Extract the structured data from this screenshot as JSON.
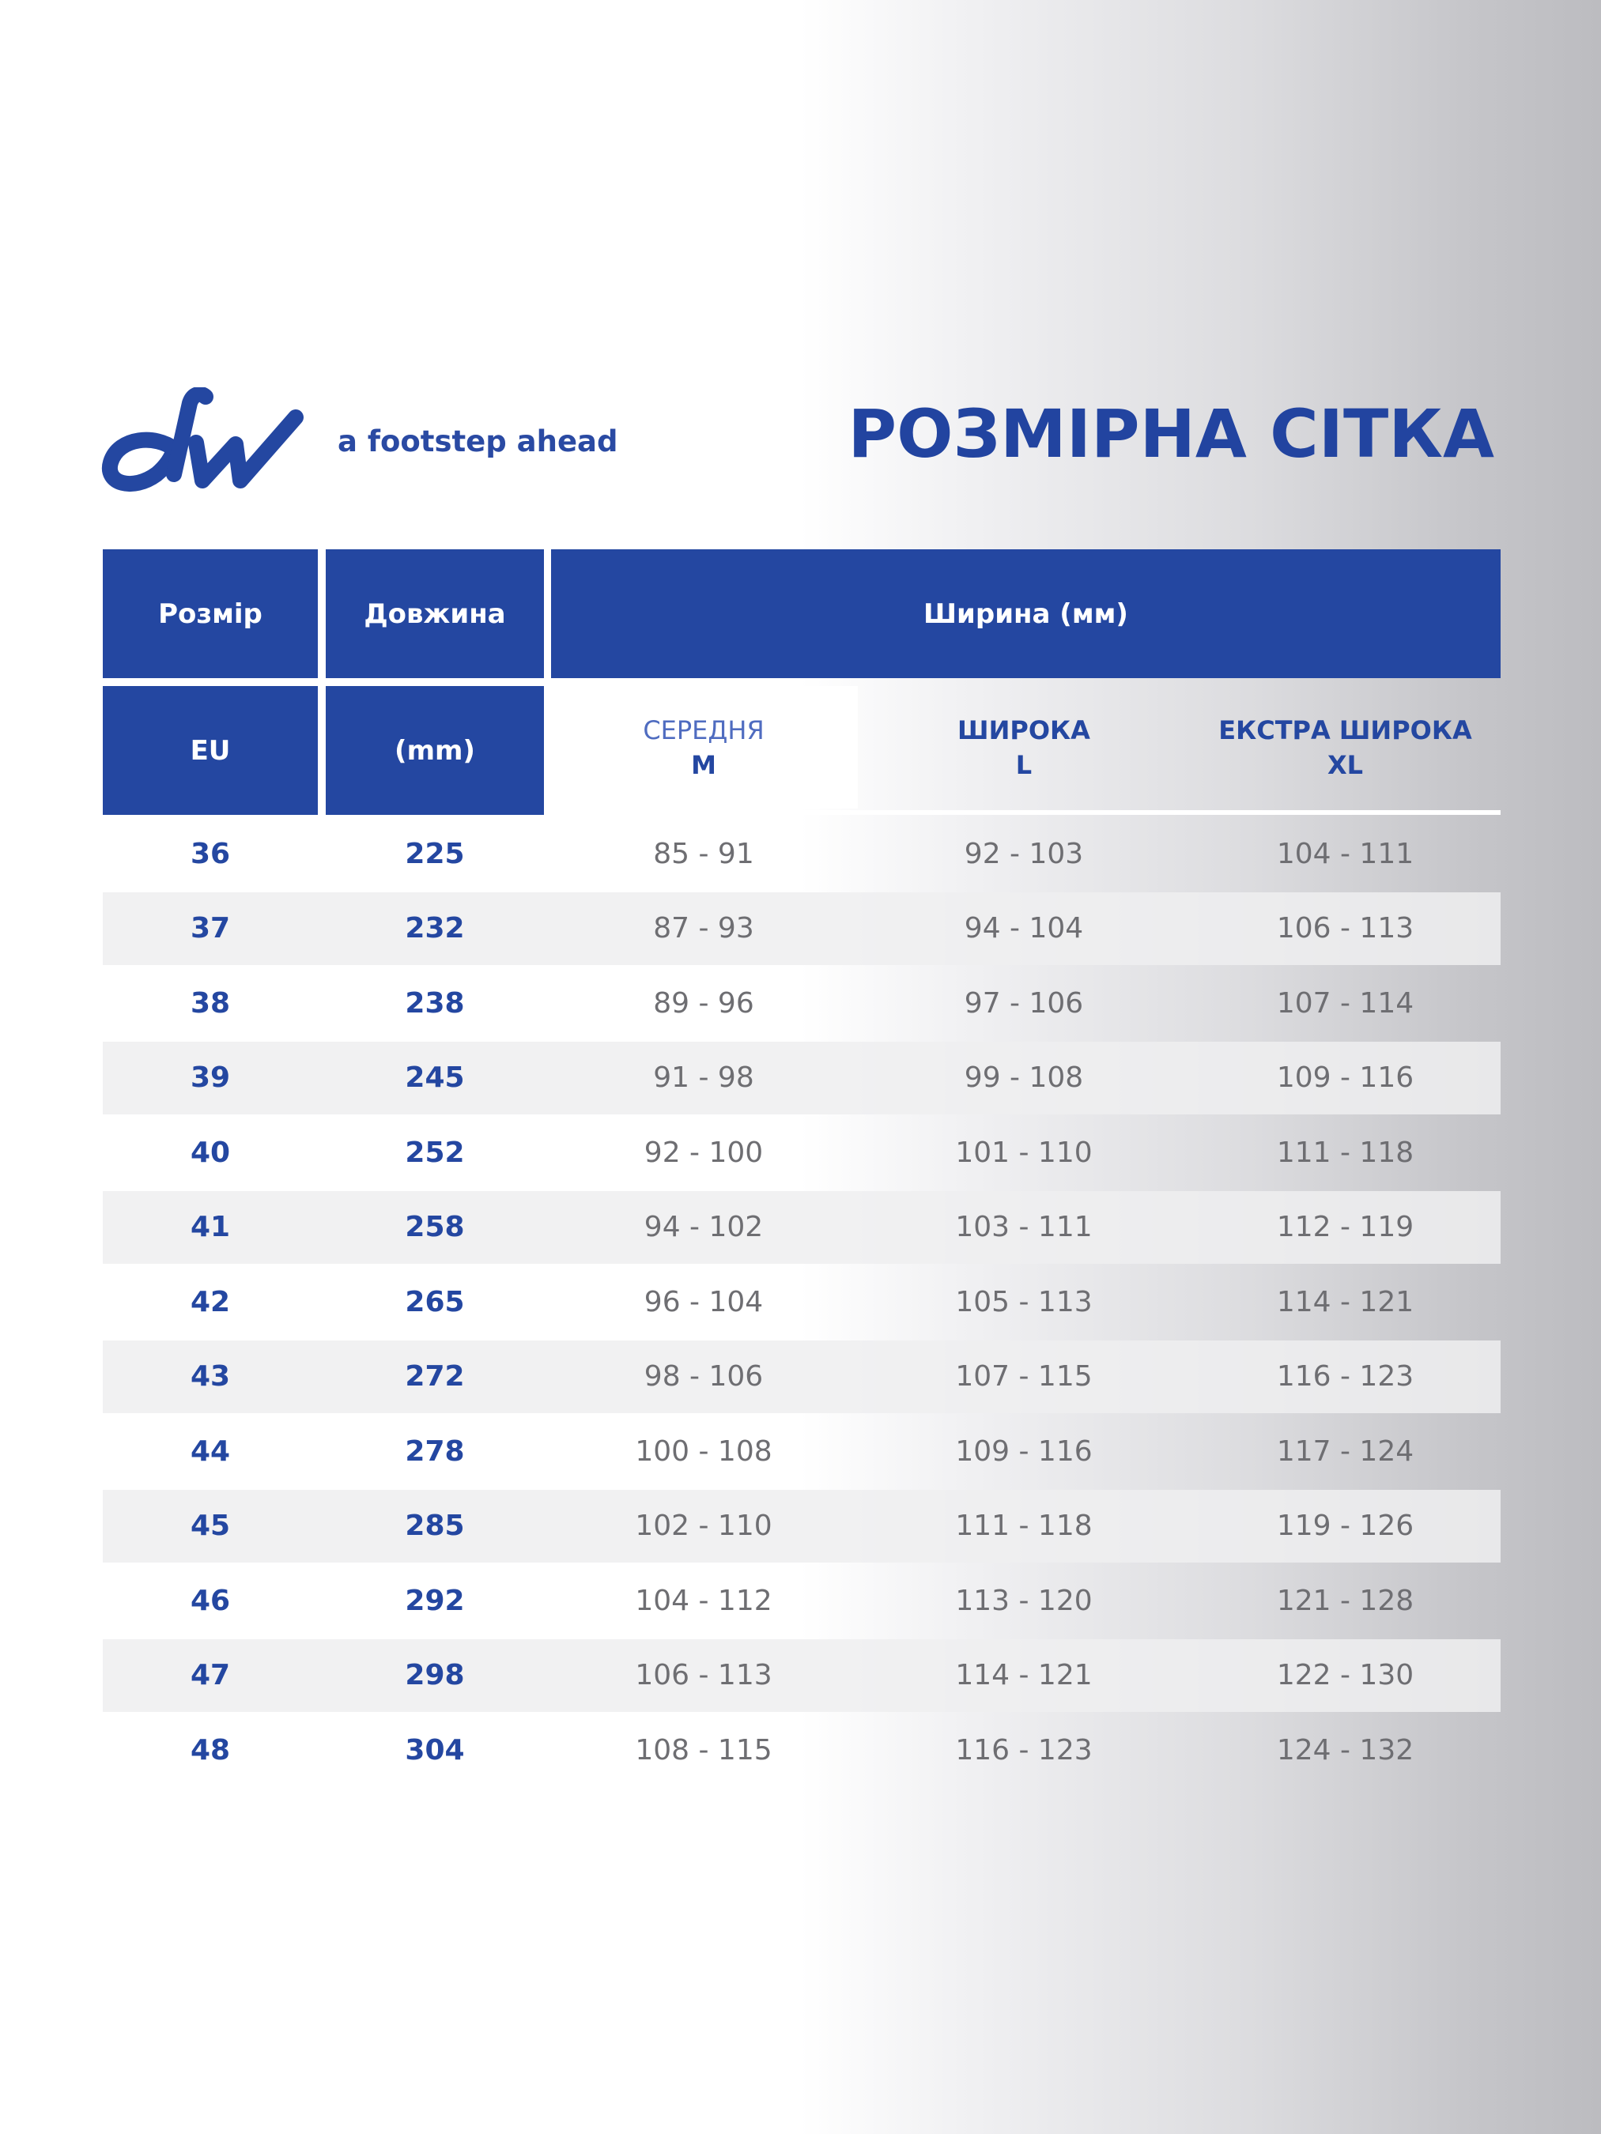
{
  "brand": {
    "tagline": "a footstep ahead",
    "logo_text": "dw"
  },
  "title": "РОЗМІРНА СІТКА",
  "table": {
    "header": {
      "size": "Розмір",
      "length": "Довжина",
      "width": "Ширина (мм)"
    },
    "subheader": {
      "size_unit": "EU",
      "length_unit": "(mm)",
      "medium": {
        "label": "СЕРЕДНЯ",
        "code": "M"
      },
      "wide": {
        "label": "ШИРОКА",
        "code": "L"
      },
      "extra_wide": {
        "label": "ЕКСТРА ШИРОКА",
        "code": "XL"
      }
    },
    "rows": [
      {
        "size": "36",
        "length": "225",
        "m": "85 - 91",
        "l": "92 - 103",
        "xl": "104 - 111"
      },
      {
        "size": "37",
        "length": "232",
        "m": "87 - 93",
        "l": "94 - 104",
        "xl": "106 - 113"
      },
      {
        "size": "38",
        "length": "238",
        "m": "89 - 96",
        "l": "97 - 106",
        "xl": "107 - 114"
      },
      {
        "size": "39",
        "length": "245",
        "m": "91 - 98",
        "l": "99 - 108",
        "xl": "109 - 116"
      },
      {
        "size": "40",
        "length": "252",
        "m": "92 - 100",
        "l": "101 - 110",
        "xl": "111 - 118"
      },
      {
        "size": "41",
        "length": "258",
        "m": "94 - 102",
        "l": "103 - 111",
        "xl": "112 - 119"
      },
      {
        "size": "42",
        "length": "265",
        "m": "96 - 104",
        "l": "105 - 113",
        "xl": "114 - 121"
      },
      {
        "size": "43",
        "length": "272",
        "m": "98 - 106",
        "l": "107 - 115",
        "xl": "116 - 123"
      },
      {
        "size": "44",
        "length": "278",
        "m": "100 - 108",
        "l": "109 - 116",
        "xl": "117 - 124"
      },
      {
        "size": "45",
        "length": "285",
        "m": "102 - 110",
        "l": "111 - 118",
        "xl": "119 - 126"
      },
      {
        "size": "46",
        "length": "292",
        "m": "104 - 112",
        "l": "113 - 120",
        "xl": "121 - 128"
      },
      {
        "size": "47",
        "length": "298",
        "m": "106 - 113",
        "l": "114 - 121",
        "xl": "122 - 130"
      },
      {
        "size": "48",
        "length": "304",
        "m": "108 - 115",
        "l": "116 - 123",
        "xl": "124 - 132"
      }
    ]
  },
  "colors": {
    "brand_blue": "#2447a1",
    "value_gray": "#6e6e72"
  }
}
